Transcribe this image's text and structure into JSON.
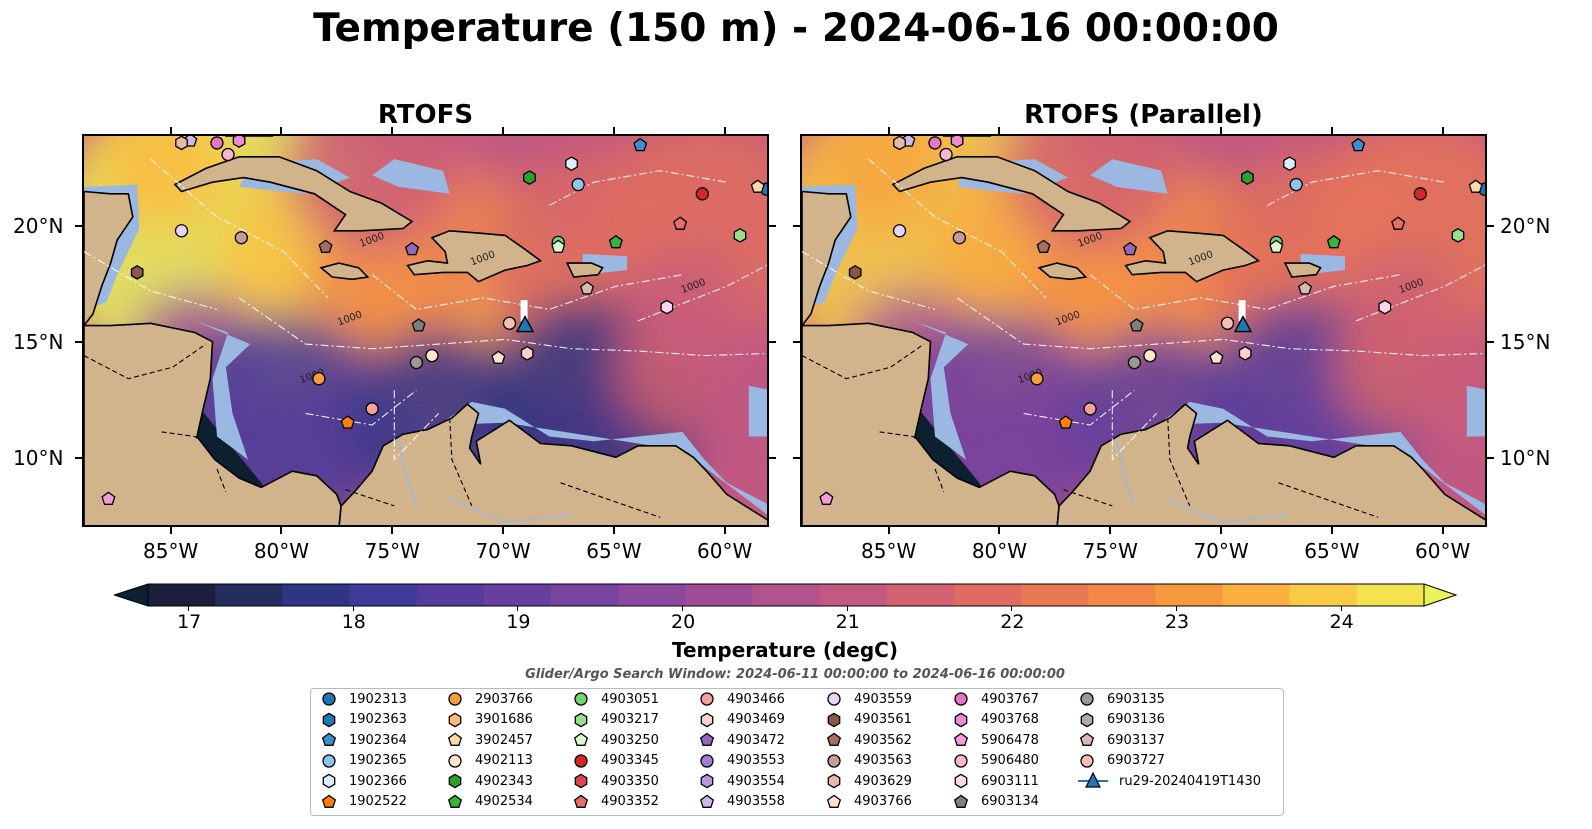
{
  "title": "Temperature (150 m) - 2024-06-16 00:00:00",
  "panels": [
    {
      "title": "RTOFS",
      "variant": 0
    },
    {
      "title": "RTOFS (Parallel)",
      "variant": 1
    }
  ],
  "map_extent": {
    "lon": [
      -89,
      -58
    ],
    "lat": [
      7,
      24
    ]
  },
  "lon_ticks": [
    "85°W",
    "80°W",
    "75°W",
    "70°W",
    "65°W",
    "60°W"
  ],
  "lat_ticks": [
    "20°N",
    "15°N",
    "10°N"
  ],
  "colorbar": {
    "label": "Temperature (degC)",
    "ticks": [
      "17",
      "18",
      "19",
      "20",
      "21",
      "22",
      "23",
      "24"
    ],
    "range": [
      16.75,
      24.5
    ],
    "colors": [
      "#1b1f3b",
      "#252c5e",
      "#2f3483",
      "#3f3a97",
      "#533c9e",
      "#663f9f",
      "#79449f",
      "#8c489d",
      "#9f4d96",
      "#b1538d",
      "#c35980",
      "#d26270",
      "#df6c61",
      "#ea7953",
      "#f28848",
      "#f7993f",
      "#fab13f",
      "#f9cb44",
      "#f3e34f"
    ],
    "under_color": "#0c2030",
    "over_color": "#e8f55a"
  },
  "search_window": "Glider/Argo Search Window: 2024-06-11 00:00:00 to 2024-06-16 00:00:00",
  "legend": [
    {
      "label": "1902313",
      "marker": "circle",
      "color": "#1f77b4"
    },
    {
      "label": "1902363",
      "marker": "hexagon",
      "color": "#1f77b4"
    },
    {
      "label": "1902364",
      "marker": "pentagon",
      "color": "#3a8fd0"
    },
    {
      "label": "1902365",
      "marker": "circle",
      "color": "#8fc4ee"
    },
    {
      "label": "1902366",
      "marker": "hexagon",
      "color": "#dceefc"
    },
    {
      "label": "1902522",
      "marker": "pentagon",
      "color": "#ff7f0e"
    },
    {
      "label": "2903766",
      "marker": "circle",
      "color": "#ff9b3d"
    },
    {
      "label": "3901686",
      "marker": "hexagon",
      "color": "#ffbb78"
    },
    {
      "label": "3902457",
      "marker": "pentagon",
      "color": "#ffd8aa"
    },
    {
      "label": "4902113",
      "marker": "circle",
      "color": "#ffe5cc"
    },
    {
      "label": "4902343",
      "marker": "hexagon",
      "color": "#2ca02c"
    },
    {
      "label": "4902534",
      "marker": "pentagon",
      "color": "#39b339"
    },
    {
      "label": "4903051",
      "marker": "circle",
      "color": "#72d672"
    },
    {
      "label": "4903217",
      "marker": "hexagon",
      "color": "#98df8a"
    },
    {
      "label": "4903250",
      "marker": "pentagon",
      "color": "#d8f8d0"
    },
    {
      "label": "4903345",
      "marker": "circle",
      "color": "#d62728"
    },
    {
      "label": "4903350",
      "marker": "hexagon",
      "color": "#e0474a"
    },
    {
      "label": "4903352",
      "marker": "pentagon",
      "color": "#ec6a6a"
    },
    {
      "label": "4903466",
      "marker": "circle",
      "color": "#f4a09b"
    },
    {
      "label": "4903469",
      "marker": "hexagon",
      "color": "#fdd0cf"
    },
    {
      "label": "4903472",
      "marker": "pentagon",
      "color": "#9467bd"
    },
    {
      "label": "4903553",
      "marker": "circle",
      "color": "#a17fcd"
    },
    {
      "label": "4903554",
      "marker": "hexagon",
      "color": "#b698dd"
    },
    {
      "label": "4903558",
      "marker": "pentagon",
      "color": "#cdb7eb"
    },
    {
      "label": "4903559",
      "marker": "circle",
      "color": "#e6d6f8"
    },
    {
      "label": "4903561",
      "marker": "hexagon",
      "color": "#8c564b"
    },
    {
      "label": "4903562",
      "marker": "pentagon",
      "color": "#a5705f"
    },
    {
      "label": "4903563",
      "marker": "circle",
      "color": "#c49c94"
    },
    {
      "label": "4903629",
      "marker": "hexagon",
      "color": "#e6b9ad"
    },
    {
      "label": "4903766",
      "marker": "pentagon",
      "color": "#fde0d5"
    },
    {
      "label": "4903767",
      "marker": "circle",
      "color": "#e377c2"
    },
    {
      "label": "4903768",
      "marker": "hexagon",
      "color": "#ea8ccf"
    },
    {
      "label": "5906478",
      "marker": "pentagon",
      "color": "#f39bd9"
    },
    {
      "label": "5906480",
      "marker": "circle",
      "color": "#f7b6d2"
    },
    {
      "label": "6903111",
      "marker": "hexagon",
      "color": "#fbd8ec"
    },
    {
      "label": "6903134",
      "marker": "pentagon",
      "color": "#7f7f7f"
    },
    {
      "label": "6903135",
      "marker": "circle",
      "color": "#9f9696"
    },
    {
      "label": "6903136",
      "marker": "hexagon",
      "color": "#b8a8a6"
    },
    {
      "label": "6903137",
      "marker": "pentagon",
      "color": "#d8b9b3"
    },
    {
      "label": "6903727",
      "marker": "circle",
      "color": "#f5c0b4"
    },
    {
      "label": "ru29-20240419T1430",
      "marker": "triangle",
      "color": "#1f77b4"
    }
  ],
  "floats": [
    {
      "id": "1902313",
      "lon": -58.2,
      "lat": 21.7
    },
    {
      "id": "1902364",
      "lon": -63.9,
      "lat": 23.6
    },
    {
      "id": "1902365",
      "lon": -66.7,
      "lat": 21.9
    },
    {
      "id": "1902366",
      "lon": -67.0,
      "lat": 22.8
    },
    {
      "id": "1902522",
      "lon": -77.1,
      "lat": 11.6
    },
    {
      "id": "2903766",
      "lon": -78.4,
      "lat": 13.5
    },
    {
      "id": "3902457",
      "lon": -58.6,
      "lat": 21.8
    },
    {
      "id": "4902113",
      "lon": -73.3,
      "lat": 14.5
    },
    {
      "id": "4902343",
      "lon": -68.9,
      "lat": 22.2
    },
    {
      "id": "4902534",
      "lon": -65.0,
      "lat": 19.4
    },
    {
      "id": "4903051",
      "lon": -67.6,
      "lat": 19.4
    },
    {
      "id": "4903217",
      "lon": -59.4,
      "lat": 19.7
    },
    {
      "id": "4903250",
      "lon": -67.6,
      "lat": 19.2
    },
    {
      "id": "4903345",
      "lon": -61.1,
      "lat": 21.5
    },
    {
      "id": "4903352",
      "lon": -62.1,
      "lat": 20.2
    },
    {
      "id": "4903466",
      "lon": -76.0,
      "lat": 12.2
    },
    {
      "id": "4903469",
      "lon": -69.0,
      "lat": 14.6
    },
    {
      "id": "4903472",
      "lon": -74.2,
      "lat": 19.1
    },
    {
      "id": "4903558",
      "lon": -84.2,
      "lat": 23.8
    },
    {
      "id": "4903559",
      "lon": -84.6,
      "lat": 19.9
    },
    {
      "id": "4903561",
      "lon": -86.6,
      "lat": 18.1
    },
    {
      "id": "4903562",
      "lon": -78.1,
      "lat": 19.2
    },
    {
      "id": "4903563",
      "lon": -81.9,
      "lat": 19.6
    },
    {
      "id": "4903629",
      "lon": -84.6,
      "lat": 23.7
    },
    {
      "id": "4903766",
      "lon": -70.3,
      "lat": 14.4
    },
    {
      "id": "4903767",
      "lon": -83.0,
      "lat": 23.7
    },
    {
      "id": "4903768",
      "lon": -82.0,
      "lat": 23.8
    },
    {
      "id": "5906478",
      "lon": -87.9,
      "lat": 8.3
    },
    {
      "id": "5906480",
      "lon": -82.5,
      "lat": 23.2
    },
    {
      "id": "6903111",
      "lon": -62.7,
      "lat": 16.6
    },
    {
      "id": "6903134",
      "lon": -73.9,
      "lat": 15.8
    },
    {
      "id": "6903135",
      "lon": -74.0,
      "lat": 14.2
    },
    {
      "id": "6903137",
      "lon": -66.3,
      "lat": 17.4
    },
    {
      "id": "6903727",
      "lon": -69.8,
      "lat": 15.9
    },
    {
      "id": "ru29-20240419T1430",
      "lon": -69.1,
      "lat": 15.8
    }
  ],
  "contour_labels": [
    "1000",
    "1000",
    "1000",
    "1000",
    "1000"
  ]
}
